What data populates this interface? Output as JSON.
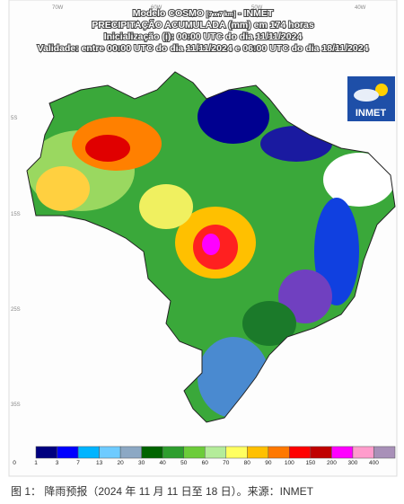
{
  "header": {
    "model": "Modelo COSMO",
    "resolution": "[7 x 7 km]",
    "agency": "- INMET",
    "title": "PRECIPITAÇÃO ACUMULADA (mm) em 174 horas",
    "init": "Inicialização (i): 00:00 UTC do dia 11/11/2024",
    "validity": "Validade: entre 00:00 UTC do dia 11/11/2024 e 06:00 UTC do dia 18/11/2024"
  },
  "logo": {
    "text": "INMET"
  },
  "grid_labels": {
    "lon": [
      "70W",
      "60W",
      "50W",
      "40W"
    ],
    "lat": [
      "5S",
      "15S",
      "25S",
      "35S"
    ]
  },
  "legend": {
    "ticks": [
      0,
      1,
      3,
      7,
      13,
      20,
      30,
      40,
      50,
      60,
      70,
      80,
      90,
      100,
      150,
      200,
      300,
      400
    ],
    "colors": [
      "#00007f",
      "#0000ff",
      "#00b4ff",
      "#6ecbff",
      "#8ca8c4",
      "#006400",
      "#2e9e2e",
      "#6ccc3a",
      "#b4ec9a",
      "#ffff60",
      "#ffc000",
      "#ff7800",
      "#ff0000",
      "#c00000",
      "#ff00ff",
      "#ff9ccc",
      "#a890b8"
    ]
  },
  "caption": "图 1： 降雨预报（2024 年 11 月 11 日至 18 日）。来源：INMET"
}
